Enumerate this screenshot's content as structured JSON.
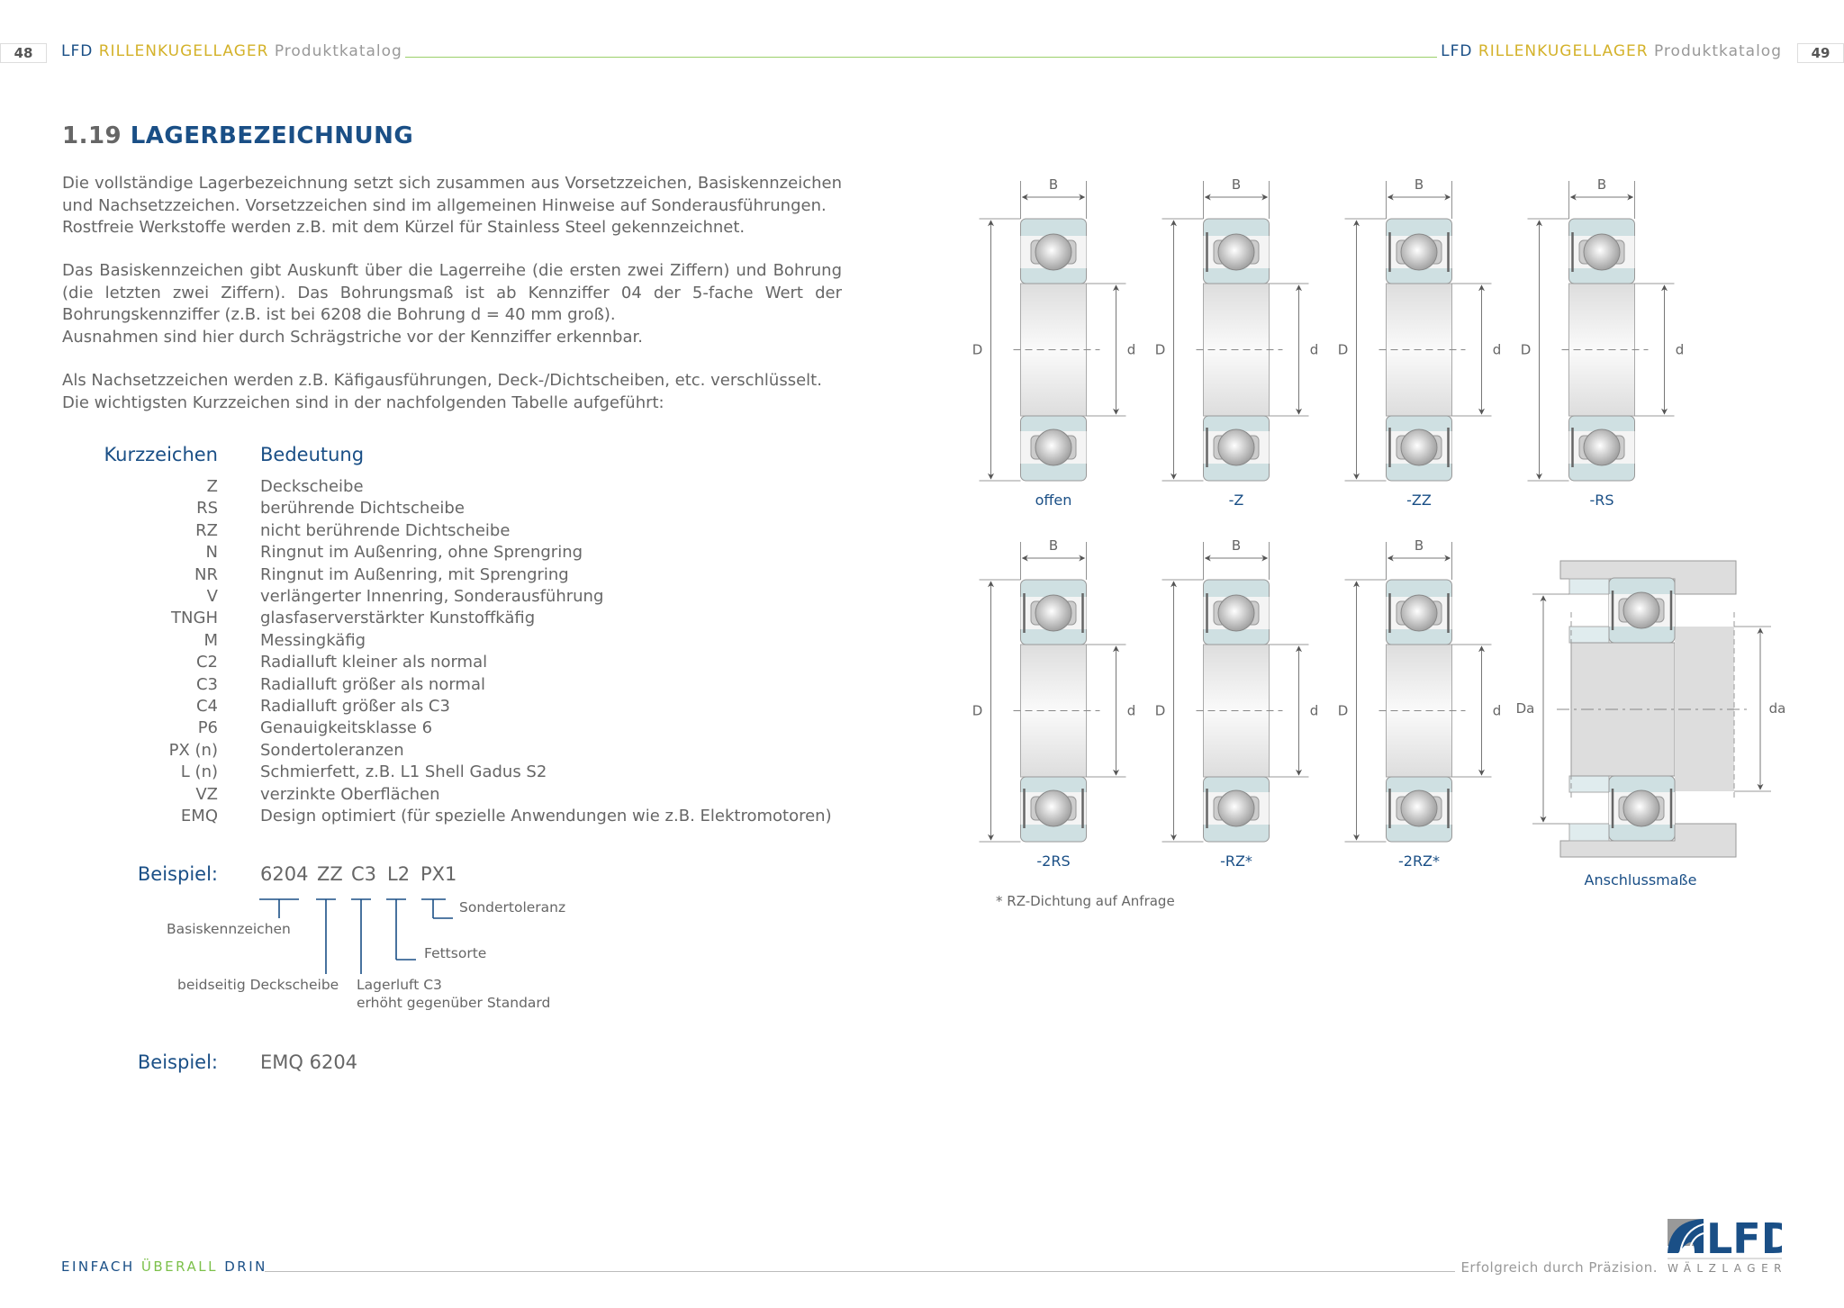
{
  "header": {
    "left_page": "48",
    "right_page": "49",
    "brand": "LFD",
    "product": "RILLENKUGELLAGER",
    "catalog": "Produktkatalog"
  },
  "title": {
    "number": "1.19",
    "text": "LAGERBEZEICHNUNG"
  },
  "paragraphs": [
    [
      "Die vollständige Lagerbezeichnung setzt sich zusammen aus Vorsetzzeichen, Basiskennzeichen und Nachsetzzeichen. Vorsetzzeichen sind im allgemeinen Hinweise auf Sonderausführungen.",
      "Rostfreie Werkstoffe werden z.B. mit dem Kürzel für Stainless Steel gekennzeichnet."
    ],
    [
      "Das Basiskennzeichen gibt Auskunft über die Lagerreihe (die ersten zwei Ziffern) und Bohrung (die letzten zwei Ziffern). Das Bohrungsmaß ist ab Kennziffer 04 der 5-fache Wert der Bohrungskennziffer (z.B. ist bei 6208 die Bohrung d = 40 mm groß).",
      "Ausnahmen sind hier durch Schrägstriche vor der Kennziffer erkennbar."
    ],
    [
      "Als Nachsetzzeichen werden z.B. Käfigausführungen, Deck-/Dichtscheiben, etc. verschlüsselt.",
      "Die wichtigsten Kurzzeichen sind in der nachfolgenden Tabelle aufgeführt:"
    ]
  ],
  "table": {
    "headers": [
      "Kurzzeichen",
      "Bedeutung"
    ],
    "rows": [
      [
        "Z",
        "Deckscheibe"
      ],
      [
        "RS",
        "berührende Dichtscheibe"
      ],
      [
        "RZ",
        "nicht berührende Dichtscheibe"
      ],
      [
        "N",
        "Ringnut im Außenring, ohne Sprengring"
      ],
      [
        "NR",
        "Ringnut im Außenring, mit Sprengring"
      ],
      [
        "V",
        "verlängerter Innenring, Sonderausführung"
      ],
      [
        "TNGH",
        "glasfaserverstärkter Kunstoffkäfig"
      ],
      [
        "M",
        "Messingkäfig"
      ],
      [
        "C2",
        "Radialluft kleiner als normal"
      ],
      [
        "C3",
        "Radialluft größer als normal"
      ],
      [
        "C4",
        "Radialluft größer als C3"
      ],
      [
        "P6",
        "Genauigkeitsklasse 6"
      ],
      [
        "PX (n)",
        "Sondertoleranzen"
      ],
      [
        "L (n)",
        "Schmierfett, z.B. L1 Shell Gadus S2"
      ],
      [
        "VZ",
        "verzinkte Oberflächen"
      ],
      [
        "EMQ",
        "Design optimiert (für spezielle Anwendungen wie z.B. Elektromotoren)"
      ]
    ]
  },
  "example1": {
    "label": "Beispiel:",
    "tokens": [
      "6204",
      "ZZ",
      "C3",
      "L2",
      "PX1"
    ],
    "annotations": {
      "basis": "Basiskennzeichen",
      "zz": "beidseitig Deckscheibe",
      "c3_1": "Lagerluft C3",
      "c3_2": "erhöht gegenüber Standard",
      "l2": "Fettsorte",
      "px1": "Sondertoleranz"
    }
  },
  "example2": {
    "label": "Beispiel:",
    "value": "EMQ 6204"
  },
  "diagrams": {
    "dims": {
      "B": "B",
      "D": "D",
      "d": "d",
      "Da": "Da",
      "da": "da"
    },
    "bearings": [
      {
        "label": "offen",
        "seal": "none"
      },
      {
        "label": "-Z",
        "seal": "shield-left"
      },
      {
        "label": "-ZZ",
        "seal": "shield-both"
      },
      {
        "label": "-RS",
        "seal": "seal-left"
      },
      {
        "label": "-2RS",
        "seal": "seal-both"
      },
      {
        "label": "-RZ*",
        "seal": "seal-left"
      },
      {
        "label": "-2RZ*",
        "seal": "seal-both"
      }
    ],
    "mounting_label": "Anschlussmaße",
    "footnote": "* RZ-Dichtung auf Anfrage"
  },
  "footer": {
    "slogan": [
      "EINFACH",
      "ÜBERALL",
      "DRIN"
    ],
    "tagline": "Erfolgreich durch Präzision.",
    "logo_text": "LFD",
    "logo_sub": "WÄLZLAGER"
  },
  "colors": {
    "blue": "#1a4f86",
    "gold": "#d4b22a",
    "green": "#7cc04a",
    "ring": "#cfe0e2",
    "gray": "#666666"
  }
}
